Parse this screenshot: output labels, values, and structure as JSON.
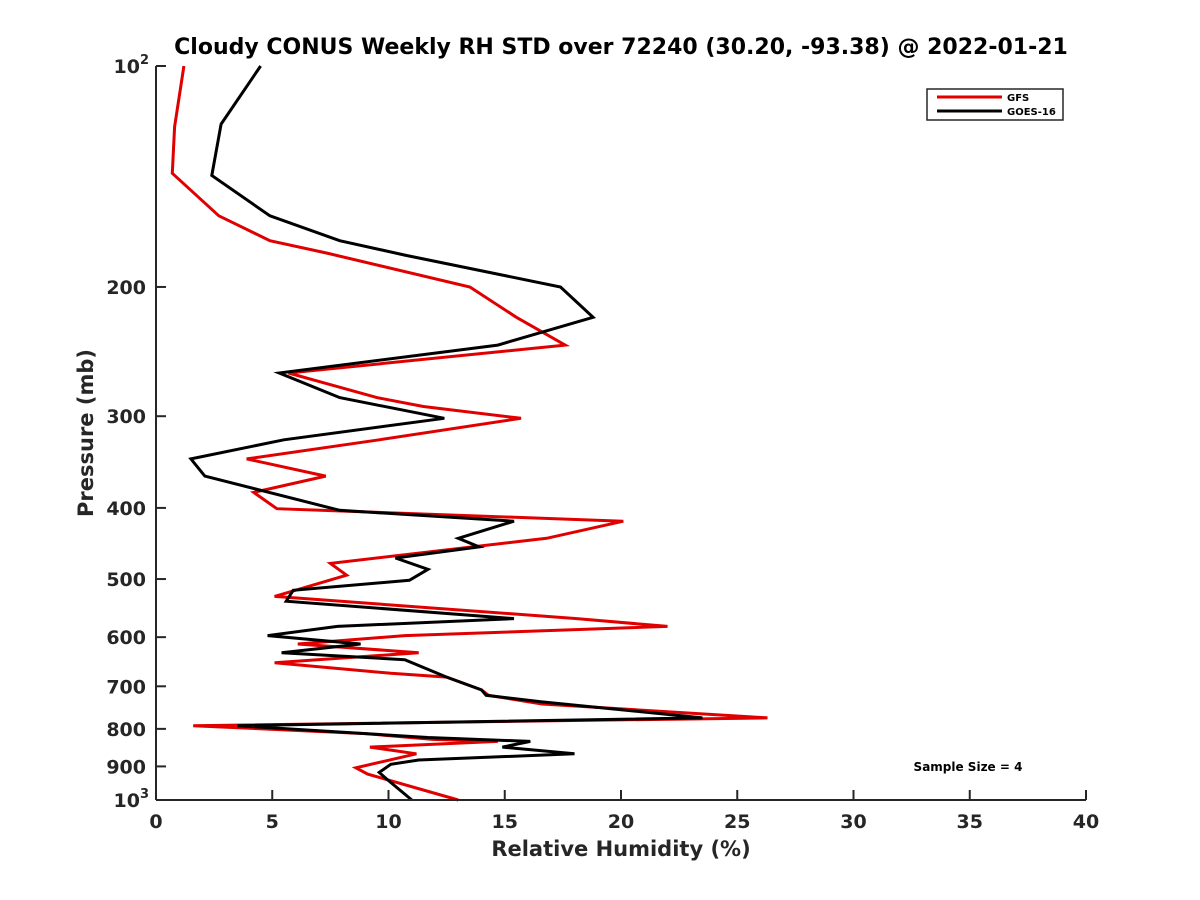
{
  "chart_data": {
    "type": "line",
    "title": "Cloudy CONUS Weekly RH STD over 72240 (30.20, -93.38) @ 2022-01-21",
    "xlabel": "Relative Humidity (%)",
    "ylabel": "Pressure (mb)",
    "xlim": [
      0,
      40
    ],
    "ylim": [
      100,
      1000
    ],
    "yscale": "log",
    "yreversed": true,
    "xticks": [
      0,
      5,
      10,
      15,
      20,
      25,
      30,
      35,
      40
    ],
    "xtick_labels": [
      "0",
      "5",
      "10",
      "15",
      "20",
      "25",
      "30",
      "35",
      "40"
    ],
    "yticks": [
      100,
      200,
      300,
      400,
      500,
      600,
      700,
      800,
      900,
      1000
    ],
    "ytick_labels": [
      "10",
      "200",
      "300",
      "400",
      "500",
      "600",
      "700",
      "800",
      "900",
      "10"
    ],
    "ytick_superscripts": [
      "2",
      "",
      "",
      "",
      "",
      "",
      "",
      "",
      "",
      "3"
    ],
    "grid": false,
    "legend_position": "top-right",
    "annotation": "Sample Size = 4",
    "series": [
      {
        "name": "GFS",
        "color": "#e00000",
        "x": [
          1.2,
          0.8,
          0.7,
          2.7,
          4.9,
          7.4,
          13.5,
          15.5,
          17.6,
          5.7,
          9.5,
          11.5,
          15.7,
          9.6,
          3.9,
          7.3,
          4.2,
          5.2,
          20.1,
          16.8,
          7.5,
          8.2,
          5.1,
          18.1,
          22.0,
          10.7,
          6.1,
          11.3,
          5.1,
          10.1,
          12.5,
          14.0,
          14.3,
          16.6,
          26.3,
          1.6,
          9.0,
          11.9,
          14.7,
          9.2,
          11.2,
          8.6,
          9.1,
          13.0
        ],
        "pressure": [
          100,
          121,
          140,
          160,
          173,
          180,
          200,
          220,
          240,
          262,
          283,
          291,
          302,
          323,
          343,
          362,
          381,
          401,
          417,
          440,
          476,
          494,
          528,
          566,
          580,
          597,
          613,
          630,
          650,
          672,
          680,
          708,
          720,
          740,
          773,
          792,
          812,
          827,
          832,
          847,
          865,
          904,
          922,
          1000
        ]
      },
      {
        "name": "GOES-16",
        "color": "#000000",
        "x": [
          4.5,
          2.8,
          2.4,
          4.9,
          7.9,
          10.7,
          17.4,
          18.8,
          14.7,
          5.3,
          7.9,
          12.4,
          5.5,
          1.5,
          2.1,
          7.9,
          15.4,
          13.0,
          13.9,
          10.3,
          11.7,
          10.9,
          5.9,
          5.6,
          15.4,
          7.8,
          4.8,
          8.8,
          5.4,
          10.7,
          12.5,
          14.0,
          14.2,
          16.6,
          23.5,
          3.5,
          11.7,
          16.1,
          14.9,
          18.0,
          11.3,
          10.1,
          9.6,
          9.9,
          11.0
        ],
        "pressure": [
          100,
          120,
          141,
          160,
          173,
          181,
          200,
          220,
          240,
          262,
          283,
          302,
          323,
          343,
          362,
          403,
          417,
          440,
          452,
          468,
          485,
          502,
          518,
          536,
          566,
          580,
          597,
          613,
          630,
          644,
          680,
          708,
          720,
          735,
          773,
          792,
          822,
          832,
          847,
          865,
          882,
          894,
          917,
          935,
          1000
        ]
      }
    ]
  }
}
